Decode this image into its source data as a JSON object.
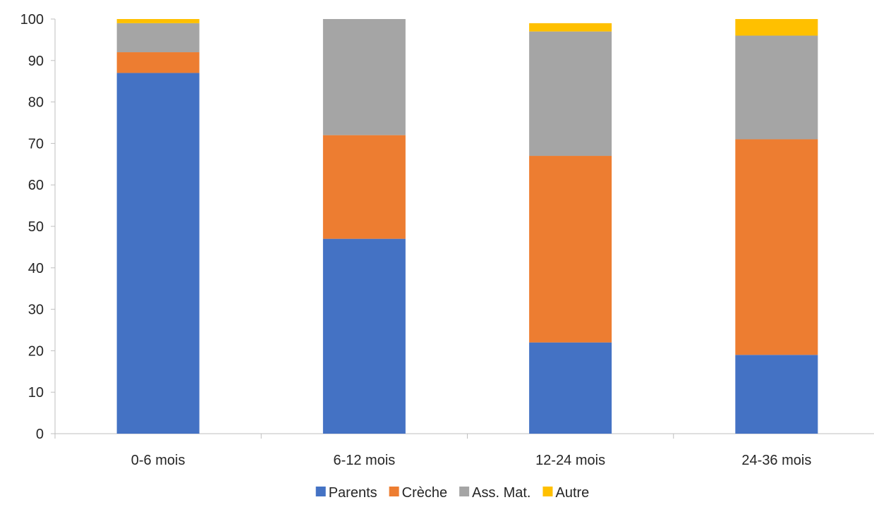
{
  "chart_data": {
    "type": "bar",
    "stacked": true,
    "categories": [
      "0-6 mois",
      "6-12 mois",
      "12-24 mois",
      "24-36 mois"
    ],
    "series": [
      {
        "name": "Parents",
        "color": "#4472C4",
        "values": [
          87,
          47,
          22,
          19
        ]
      },
      {
        "name": "Crèche",
        "color": "#ED7D31",
        "values": [
          5,
          25,
          45,
          52
        ]
      },
      {
        "name": "Ass. Mat.",
        "color": "#A5A5A5",
        "values": [
          7,
          28,
          30,
          25
        ]
      },
      {
        "name": "Autre",
        "color": "#FFC000",
        "values": [
          1,
          0,
          2,
          4
        ]
      }
    ],
    "ylim": [
      0,
      100
    ],
    "yticks": [
      0,
      10,
      20,
      30,
      40,
      50,
      60,
      70,
      80,
      90,
      100
    ],
    "grid": false,
    "legend": "bottom",
    "title": "",
    "xlabel": "",
    "ylabel": ""
  }
}
